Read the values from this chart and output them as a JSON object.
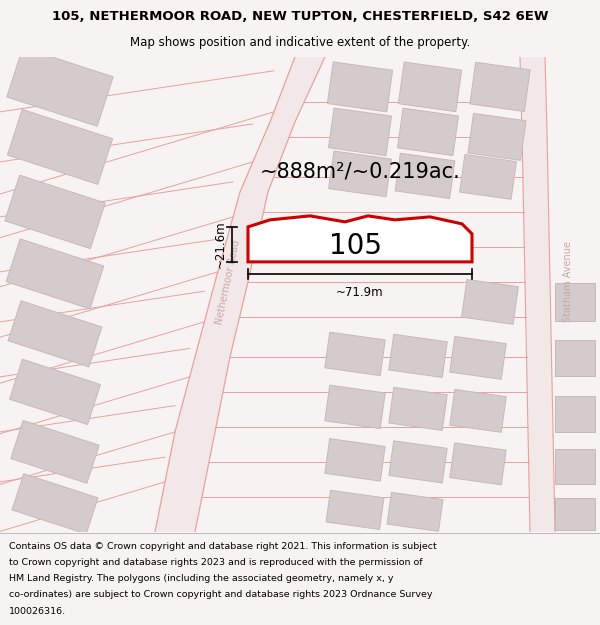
{
  "title_line1": "105, NETHERMOOR ROAD, NEW TUPTON, CHESTERFIELD, S42 6EW",
  "title_line2": "Map shows position and indicative extent of the property.",
  "footer_lines": [
    "Contains OS data © Crown copyright and database right 2021. This information is subject",
    "to Crown copyright and database rights 2023 and is reproduced with the permission of",
    "HM Land Registry. The polygons (including the associated geometry, namely x, y",
    "co-ordinates) are subject to Crown copyright and database rights 2023 Ordnance Survey",
    "100026316."
  ],
  "area_label": "~888m²/~0.219ac.",
  "width_label": "~71.9m",
  "height_label": "~21.6m",
  "plot_number": "105",
  "bg_color": "#f7f3f3",
  "map_bg": "#f5f0f0",
  "footer_bg": "#ffffff",
  "road_fill": "#f2e8e8",
  "road_line": "#e8a0a0",
  "building_fill": "#d4cccc",
  "building_edge": "#c8b8b8",
  "plot_fill": "#ffffff",
  "plot_edge": "#cc0000",
  "dim_color": "#000000",
  "text_color": "#000000",
  "road_text_color": "#c8a8a8",
  "title_fontsize": 9.5,
  "subtitle_fontsize": 8.5,
  "footer_fontsize": 6.8,
  "area_fontsize": 15,
  "plot_num_fontsize": 20,
  "dim_fontsize": 8.5,
  "road_label_fontsize": 7
}
